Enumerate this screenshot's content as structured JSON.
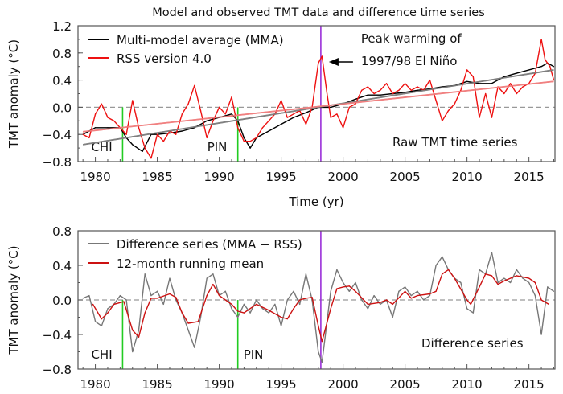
{
  "title": "Model and observed TMT data and difference time series",
  "chart_data": [
    {
      "type": "line",
      "title": "Model and observed TMT data and difference time series",
      "xlabel": "Time (yr)",
      "ylabel": "TMT anomaly (°C)",
      "xlim": [
        1978.6,
        2017.1
      ],
      "ylim": [
        -0.8,
        1.2
      ],
      "xticks": [
        1980,
        1985,
        1990,
        1995,
        2000,
        2005,
        2010,
        2015
      ],
      "yticks": [
        -0.8,
        -0.4,
        0.0,
        0.4,
        0.8,
        1.2
      ],
      "ytick_labels": [
        "−0.8",
        "−0.4",
        "0.0",
        "0.4",
        "0.8",
        "1.2"
      ],
      "legend_position": "top-left",
      "panel_label": "Raw TMT time series",
      "annotation": {
        "line1": "Peak warming of",
        "line2": "1997/98 El Niño",
        "x": 1998.2,
        "color": "#9b30d9"
      },
      "events": [
        {
          "label": "CHI",
          "x": 1982.2,
          "color": "#22cc22"
        },
        {
          "label": "PIN",
          "x": 1991.5,
          "color": "#22cc22"
        }
      ],
      "series": [
        {
          "name": "Multi-model average (MMA)",
          "color": "#000000",
          "x": [
            1979,
            1980,
            1981,
            1982,
            1982.5,
            1983,
            1983.8,
            1984.5,
            1985,
            1986,
            1987,
            1988,
            1989,
            1990,
            1991,
            1991.5,
            1992,
            1992.5,
            1993,
            1994,
            1995,
            1996,
            1997,
            1998,
            1999,
            2000,
            2001,
            2002,
            2003,
            2004,
            2005,
            2006,
            2007,
            2008,
            2009,
            2010,
            2011,
            2012,
            2013,
            2014,
            2015,
            2016,
            2016.5,
            2017
          ],
          "y": [
            -0.4,
            -0.3,
            -0.3,
            -0.3,
            -0.45,
            -0.55,
            -0.65,
            -0.4,
            -0.4,
            -0.38,
            -0.35,
            -0.3,
            -0.2,
            -0.15,
            -0.1,
            -0.2,
            -0.45,
            -0.6,
            -0.45,
            -0.35,
            -0.25,
            -0.15,
            -0.08,
            0.0,
            0.0,
            0.05,
            0.12,
            0.18,
            0.18,
            0.2,
            0.22,
            0.25,
            0.27,
            0.3,
            0.32,
            0.38,
            0.35,
            0.35,
            0.45,
            0.5,
            0.55,
            0.6,
            0.65,
            0.6
          ]
        },
        {
          "name": "RSS version 4.0",
          "color": "#ee1111",
          "x": [
            1979,
            1979.5,
            1980,
            1980.5,
            1981,
            1981.5,
            1982,
            1982.5,
            1983,
            1983.5,
            1984,
            1984.5,
            1985,
            1985.5,
            1986,
            1986.5,
            1987,
            1987.5,
            1988,
            1988.5,
            1989,
            1989.5,
            1990,
            1990.5,
            1991,
            1991.5,
            1992,
            1992.5,
            1993,
            1993.5,
            1994,
            1994.5,
            1995,
            1995.5,
            1996,
            1996.5,
            1997,
            1997.5,
            1998,
            1998.3,
            1998.7,
            1999,
            1999.5,
            2000,
            2000.5,
            2001,
            2001.5,
            2002,
            2002.5,
            2003,
            2003.5,
            2004,
            2004.5,
            2005,
            2005.5,
            2006,
            2006.5,
            2007,
            2007.5,
            2008,
            2008.5,
            2009,
            2009.5,
            2010,
            2010.5,
            2011,
            2011.5,
            2012,
            2012.5,
            2013,
            2013.5,
            2014,
            2014.5,
            2015,
            2015.5,
            2016,
            2016.3,
            2016.7,
            2017
          ],
          "y": [
            -0.4,
            -0.45,
            -0.1,
            0.05,
            -0.15,
            -0.2,
            -0.3,
            -0.4,
            0.1,
            -0.3,
            -0.6,
            -0.75,
            -0.4,
            -0.5,
            -0.35,
            -0.4,
            -0.1,
            0.05,
            0.32,
            -0.05,
            -0.45,
            -0.2,
            0.0,
            -0.1,
            0.15,
            -0.3,
            -0.5,
            -0.5,
            -0.45,
            -0.3,
            -0.2,
            -0.1,
            0.1,
            -0.15,
            -0.1,
            -0.05,
            -0.25,
            0.0,
            0.65,
            0.75,
            0.2,
            -0.15,
            -0.1,
            -0.3,
            0.0,
            0.05,
            0.25,
            0.3,
            0.2,
            0.25,
            0.35,
            0.2,
            0.25,
            0.35,
            0.25,
            0.3,
            0.25,
            0.4,
            0.1,
            -0.2,
            -0.05,
            0.05,
            0.25,
            0.55,
            0.45,
            -0.15,
            0.2,
            -0.15,
            0.3,
            0.2,
            0.35,
            0.2,
            0.3,
            0.35,
            0.5,
            1.0,
            0.7,
            0.6,
            0.4
          ]
        }
      ],
      "trend_lines": [
        {
          "of": "Multi-model average (MMA)",
          "color": "#808080",
          "x": [
            1979,
            2017
          ],
          "y": [
            -0.55,
            0.55
          ]
        },
        {
          "of": "RSS version 4.0",
          "color": "#f08080",
          "x": [
            1979,
            2017
          ],
          "y": [
            -0.36,
            0.38
          ]
        }
      ]
    },
    {
      "type": "line",
      "ylabel": "TMT anomaly (°C)",
      "xlim": [
        1978.6,
        2017.1
      ],
      "ylim": [
        -0.8,
        0.8
      ],
      "xticks": [
        1980,
        1985,
        1990,
        1995,
        2000,
        2005,
        2010,
        2015
      ],
      "yticks": [
        -0.8,
        -0.4,
        0.0,
        0.4,
        0.8
      ],
      "ytick_labels": [
        "−0.8",
        "−0.4",
        "0.0",
        "0.4",
        "0.8"
      ],
      "legend_position": "top-left",
      "panel_label": "Difference series",
      "events": [
        {
          "label": "CHI",
          "x": 1982.2,
          "color": "#22cc22"
        },
        {
          "label": "PIN",
          "x": 1991.5,
          "color": "#22cc22"
        },
        {
          "label": "",
          "x": 1998.2,
          "color": "#9b30d9"
        }
      ],
      "series": [
        {
          "name": "Difference series (MMA − RSS)",
          "color": "#777777",
          "x": [
            1979,
            1979.5,
            1980,
            1980.5,
            1981,
            1981.5,
            1982,
            1982.5,
            1983,
            1983.5,
            1984,
            1984.5,
            1985,
            1985.5,
            1986,
            1986.5,
            1987,
            1987.5,
            1988,
            1988.5,
            1989,
            1989.5,
            1990,
            1990.5,
            1991,
            1991.5,
            1992,
            1992.5,
            1993,
            1993.5,
            1994,
            1994.5,
            1995,
            1995.5,
            1996,
            1996.5,
            1997,
            1997.5,
            1998,
            1998.3,
            1998.7,
            1999,
            1999.5,
            2000,
            2000.5,
            2001,
            2001.5,
            2002,
            2002.5,
            2003,
            2003.5,
            2004,
            2004.5,
            2005,
            2005.5,
            2006,
            2006.5,
            2007,
            2007.5,
            2008,
            2008.5,
            2009,
            2009.5,
            2010,
            2010.5,
            2011,
            2011.5,
            2012,
            2012.5,
            2013,
            2013.5,
            2014,
            2014.5,
            2015,
            2015.5,
            2016,
            2016.5,
            2017
          ],
          "y": [
            0.02,
            0.05,
            -0.25,
            -0.3,
            -0.1,
            -0.05,
            0.05,
            0.0,
            -0.6,
            -0.35,
            0.3,
            0.05,
            0.1,
            -0.05,
            0.25,
            0.0,
            -0.15,
            -0.35,
            -0.55,
            -0.2,
            0.25,
            0.3,
            0.05,
            0.1,
            -0.1,
            -0.2,
            -0.05,
            -0.15,
            0.0,
            -0.1,
            -0.15,
            -0.05,
            -0.3,
            0.0,
            0.1,
            -0.05,
            0.3,
            0.0,
            -0.6,
            -0.72,
            -0.25,
            0.1,
            0.35,
            0.2,
            0.1,
            0.2,
            0.0,
            -0.1,
            0.05,
            -0.05,
            0.0,
            -0.2,
            0.1,
            0.15,
            0.05,
            0.1,
            0.0,
            0.05,
            0.4,
            0.5,
            0.35,
            0.25,
            0.2,
            -0.1,
            -0.15,
            0.35,
            0.3,
            0.55,
            0.2,
            0.25,
            0.2,
            0.35,
            0.25,
            0.2,
            0.05,
            -0.4,
            0.15,
            0.1
          ]
        },
        {
          "name": "12-month running mean",
          "color": "#cc1111",
          "x": [
            1979.8,
            1980.5,
            1981,
            1981.5,
            1982.3,
            1983,
            1983.5,
            1984,
            1984.5,
            1985,
            1986,
            1986.5,
            1987,
            1987.5,
            1988.3,
            1989,
            1989.5,
            1990,
            1991,
            1991.5,
            1992,
            1993,
            1994,
            1995,
            1995.5,
            1996,
            1996.5,
            1997,
            1997.5,
            1998,
            1998.3,
            1999,
            1999.5,
            2000,
            2000.5,
            2001,
            2002,
            2003,
            2003.5,
            2004,
            2005,
            2005.5,
            2006,
            2007,
            2007.5,
            2008,
            2008.5,
            2009,
            2010,
            2010.3,
            2011,
            2011.5,
            2012,
            2012.5,
            2013,
            2014,
            2015,
            2015.5,
            2016,
            2016.6
          ],
          "y": [
            -0.05,
            -0.22,
            -0.15,
            -0.05,
            -0.02,
            -0.35,
            -0.43,
            -0.15,
            0.02,
            0.02,
            0.07,
            0.03,
            -0.15,
            -0.27,
            -0.25,
            0.05,
            0.18,
            0.05,
            -0.05,
            -0.13,
            -0.15,
            -0.05,
            -0.12,
            -0.2,
            -0.22,
            -0.1,
            0.0,
            0.02,
            0.03,
            -0.3,
            -0.48,
            -0.1,
            0.13,
            0.15,
            0.16,
            0.1,
            -0.05,
            -0.03,
            0.0,
            -0.05,
            0.1,
            0.02,
            0.05,
            0.07,
            0.1,
            0.3,
            0.35,
            0.25,
            0.0,
            -0.05,
            0.15,
            0.3,
            0.28,
            0.18,
            0.22,
            0.28,
            0.25,
            0.2,
            0.0,
            -0.05
          ]
        }
      ]
    }
  ]
}
